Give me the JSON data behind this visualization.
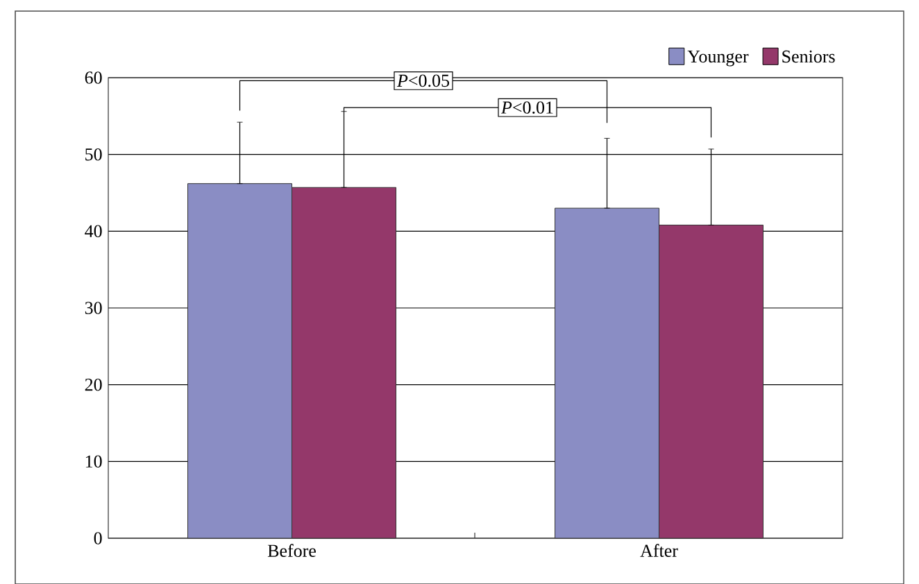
{
  "chart_data": {
    "type": "bar",
    "categories": [
      "Before",
      "After"
    ],
    "series": [
      {
        "name": "Younger",
        "color": "#8a8dc4",
        "values": [
          46.2,
          43.0
        ],
        "errors": [
          [
            46.2,
            54.2
          ],
          [
            43.0,
            52.1
          ]
        ]
      },
      {
        "name": "Seniors",
        "color": "#94386a",
        "values": [
          45.7,
          40.8
        ],
        "errors": [
          [
            45.7,
            55.6
          ],
          [
            40.8,
            50.7
          ]
        ]
      }
    ],
    "ylim": [
      0,
      60
    ],
    "yticks": [
      0,
      10,
      20,
      30,
      40,
      50,
      60
    ],
    "grid": "y",
    "legend": "top right",
    "annotations": [
      "*P*<0.05",
      "*P*<0.01"
    ]
  }
}
